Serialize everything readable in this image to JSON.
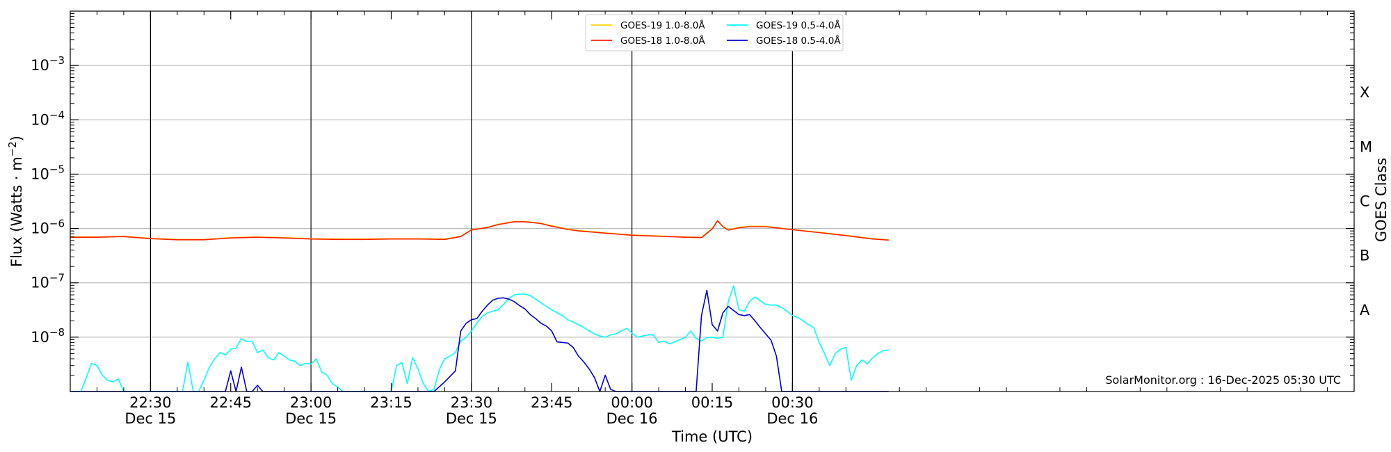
{
  "chart_data": {
    "type": "line",
    "title": "",
    "xlabel": "Time (UTC)",
    "ylabel": "Flux (Watts · m",
    "ylabel_sup": "−2",
    "ylabel_end": ")",
    "y2label": "GOES Class",
    "yscale": "log",
    "ylim": [
      1e-09,
      0.01
    ],
    "xlim_minutes": [
      1335,
      1575
    ],
    "grid": {
      "horizontal": true,
      "vertical_at_major_ticks": true
    },
    "legend_position": "top-center",
    "y_ticks": [
      {
        "value": 1e-08,
        "base": "10",
        "exp": "−8"
      },
      {
        "value": 1e-07,
        "base": "10",
        "exp": "−7"
      },
      {
        "value": 1e-06,
        "base": "10",
        "exp": "−6"
      },
      {
        "value": 1e-05,
        "base": "10",
        "exp": "−5"
      },
      {
        "value": 0.0001,
        "base": "10",
        "exp": "−4"
      },
      {
        "value": 0.001,
        "base": "10",
        "exp": "−3"
      }
    ],
    "x_ticks": [
      {
        "minute": 1350,
        "label": "22:30",
        "date": "Dec 15",
        "major": true
      },
      {
        "minute": 1365,
        "label": "22:45",
        "date": "",
        "major": false
      },
      {
        "minute": 1380,
        "label": "23:00",
        "date": "Dec 15",
        "major": true
      },
      {
        "minute": 1395,
        "label": "23:15",
        "date": "",
        "major": false
      },
      {
        "minute": 1410,
        "label": "23:30",
        "date": "Dec 15",
        "major": true
      },
      {
        "minute": 1425,
        "label": "23:45",
        "date": "",
        "major": false
      },
      {
        "minute": 1440,
        "label": "00:00",
        "date": "Dec 16",
        "major": true
      },
      {
        "minute": 1455,
        "label": "00:15",
        "date": "",
        "major": false
      },
      {
        "minute": 1470,
        "label": "00:30",
        "date": "Dec 16",
        "major": true
      }
    ],
    "goes_classes": [
      {
        "label": "A",
        "value": 3.16e-08
      },
      {
        "label": "B",
        "value": 3.16e-07
      },
      {
        "label": "C",
        "value": 3.16e-06
      },
      {
        "label": "M",
        "value": 3.16e-05
      },
      {
        "label": "X",
        "value": 0.000316
      }
    ],
    "series": [
      {
        "name": "GOES-19 1.0-8.0Å",
        "color": "#ffd700",
        "x": [
          1335,
          1340,
          1345,
          1350,
          1355,
          1360,
          1365,
          1370,
          1375,
          1380,
          1385,
          1390,
          1395,
          1400,
          1405,
          1408,
          1410,
          1413,
          1415,
          1418,
          1420,
          1423,
          1425,
          1428,
          1430,
          1435,
          1440,
          1445,
          1450,
          1453,
          1455,
          1456,
          1457,
          1458,
          1460,
          1462,
          1465,
          1470,
          1475,
          1480,
          1485,
          1488
        ],
        "y": [
          7e-07,
          7e-07,
          7.2e-07,
          6.6e-07,
          6.3e-07,
          6.3e-07,
          6.8e-07,
          7e-07,
          6.8e-07,
          6.5e-07,
          6.4e-07,
          6.4e-07,
          6.5e-07,
          6.5e-07,
          6.4e-07,
          7.2e-07,
          9.5e-07,
          1.05e-06,
          1.2e-06,
          1.35e-06,
          1.35e-06,
          1.25e-06,
          1.12e-06,
          9.8e-07,
          9.2e-07,
          8.3e-07,
          7.6e-07,
          7.3e-07,
          7e-07,
          6.9e-07,
          1e-06,
          1.4e-06,
          1.1e-06,
          9.5e-07,
          1.05e-06,
          1.1e-06,
          1.1e-06,
          9.6e-07,
          8.5e-07,
          7.5e-07,
          6.5e-07,
          6.2e-07
        ]
      },
      {
        "name": "GOES-18 1.0-8.0Å",
        "color": "#ff2000",
        "x": [
          1335,
          1340,
          1345,
          1350,
          1355,
          1360,
          1365,
          1370,
          1375,
          1380,
          1385,
          1390,
          1395,
          1400,
          1405,
          1408,
          1410,
          1413,
          1415,
          1418,
          1420,
          1423,
          1425,
          1428,
          1430,
          1435,
          1440,
          1445,
          1450,
          1453,
          1455,
          1456,
          1457,
          1458,
          1460,
          1462,
          1465,
          1470,
          1475,
          1480,
          1485,
          1488
        ],
        "y": [
          6.9e-07,
          6.9e-07,
          7.1e-07,
          6.5e-07,
          6.2e-07,
          6.2e-07,
          6.7e-07,
          6.9e-07,
          6.7e-07,
          6.4e-07,
          6.3e-07,
          6.3e-07,
          6.4e-07,
          6.4e-07,
          6.3e-07,
          7.1e-07,
          9.4e-07,
          1.04e-06,
          1.18e-06,
          1.33e-06,
          1.33e-06,
          1.23e-06,
          1.1e-06,
          9.6e-07,
          9e-07,
          8.2e-07,
          7.5e-07,
          7.2e-07,
          6.9e-07,
          6.8e-07,
          9.8e-07,
          1.38e-06,
          1.08e-06,
          9.3e-07,
          1.03e-06,
          1.08e-06,
          1.08e-06,
          9.5e-07,
          8.4e-07,
          7.4e-07,
          6.4e-07,
          6.1e-07
        ]
      },
      {
        "name": "GOES-19 0.5-4.0Å",
        "color": "#00ffff",
        "x": [
          1335,
          1337,
          1339,
          1340,
          1341,
          1342,
          1343,
          1344,
          1345,
          1347,
          1348,
          1350,
          1351,
          1352,
          1353,
          1354,
          1355,
          1356,
          1357,
          1358,
          1359,
          1360,
          1361,
          1362,
          1363,
          1364,
          1365,
          1366,
          1367,
          1368,
          1369,
          1370,
          1371,
          1372,
          1373,
          1374,
          1375,
          1376,
          1377,
          1378,
          1379,
          1380,
          1381,
          1382,
          1383,
          1384,
          1385,
          1386,
          1387,
          1388,
          1389,
          1390,
          1391,
          1392,
          1393,
          1394,
          1395,
          1396,
          1397,
          1398,
          1399,
          1400,
          1401,
          1402,
          1403,
          1404,
          1405,
          1406,
          1407,
          1408,
          1409,
          1410,
          1411,
          1412,
          1413,
          1414,
          1415,
          1416,
          1417,
          1418,
          1419,
          1420,
          1421,
          1422,
          1423,
          1424,
          1425,
          1426,
          1427,
          1428,
          1429,
          1430,
          1431,
          1432,
          1433,
          1434,
          1435,
          1436,
          1437,
          1438,
          1439,
          1440,
          1441,
          1442,
          1443,
          1444,
          1445,
          1446,
          1447,
          1448,
          1449,
          1450,
          1451,
          1452,
          1453,
          1454,
          1455,
          1456,
          1457,
          1458,
          1459,
          1460,
          1461,
          1462,
          1463,
          1464,
          1465,
          1466,
          1467,
          1468,
          1469,
          1470,
          1471,
          1472,
          1473,
          1474,
          1475,
          1476,
          1477,
          1478,
          1479,
          1480,
          1481,
          1482,
          1483,
          1484,
          1485,
          1486,
          1487,
          1488
        ],
        "y": [
          1e-09,
          1e-09,
          3.3e-09,
          3e-09,
          2e-09,
          1.6e-09,
          1.5e-09,
          1.7e-09,
          1e-09,
          1e-09,
          1e-09,
          1e-09,
          1e-09,
          1e-09,
          1e-09,
          1e-09,
          1e-09,
          1e-09,
          3.5e-09,
          1e-09,
          1e-09,
          1.6e-09,
          2.8e-09,
          4e-09,
          5.2e-09,
          4.7e-09,
          6e-09,
          6.3e-09,
          9.4e-09,
          8.3e-09,
          8.5e-09,
          5.2e-09,
          5.8e-09,
          4.2e-09,
          3.8e-09,
          5.2e-09,
          4.5e-09,
          3.8e-09,
          3.6e-09,
          3e-09,
          3.3e-09,
          3.2e-09,
          4e-09,
          2.3e-09,
          2e-09,
          1.4e-09,
          1.2e-09,
          1e-09,
          1e-09,
          1e-09,
          1e-09,
          1e-09,
          1e-09,
          1e-09,
          1e-09,
          1e-09,
          1e-09,
          3e-09,
          3.4e-09,
          1.4e-09,
          4.2e-09,
          2.6e-09,
          1.4e-09,
          1e-09,
          1.1e-09,
          2.5e-09,
          4e-09,
          4.5e-09,
          5.2e-09,
          8.5e-09,
          1e-08,
          1.3e-08,
          1.8e-08,
          2.4e-08,
          2.8e-08,
          3e-08,
          3.2e-08,
          4e-08,
          5.2e-08,
          6e-08,
          6.2e-08,
          6.2e-08,
          5.8e-08,
          5e-08,
          4.3e-08,
          3.7e-08,
          3.2e-08,
          2.8e-08,
          2.5e-08,
          2.1e-08,
          1.9e-08,
          1.7e-08,
          1.5e-08,
          1.3e-08,
          1.15e-08,
          1.05e-08,
          1e-08,
          1.1e-08,
          1.15e-08,
          1.3e-08,
          1.45e-08,
          1.2e-08,
          1e-08,
          1.05e-08,
          1.1e-08,
          1.1e-08,
          8e-09,
          8.5e-09,
          7.5e-09,
          8.2e-09,
          9e-09,
          1e-08,
          1.3e-08,
          9.5e-09,
          8.5e-09,
          9.8e-09,
          1e-08,
          9.5e-09,
          1e-08,
          4.5e-08,
          8.8e-08,
          3.2e-08,
          3e-08,
          4.5e-08,
          5.5e-08,
          4.7e-08,
          4e-08,
          3.9e-08,
          3.9e-08,
          3.5e-08,
          3e-08,
          2.5e-08,
          2.3e-08,
          2e-08,
          1.7e-08,
          1.5e-08,
          8e-09,
          5e-09,
          3e-09,
          5e-09,
          6e-09,
          6.5e-09,
          1.6e-09,
          3e-09,
          3.8e-09,
          3.2e-09,
          4.2e-09,
          5e-09,
          5.7e-09,
          5.8e-09
        ]
      },
      {
        "name": "GOES-18 0.5-4.0Å",
        "color": "#0000cc",
        "x": [
          1335,
          1364,
          1365,
          1366,
          1367,
          1368,
          1369,
          1370,
          1371,
          1372,
          1373,
          1374,
          1375,
          1402,
          1403,
          1405,
          1407,
          1408,
          1409,
          1410,
          1411,
          1412,
          1413,
          1414,
          1415,
          1416,
          1417,
          1418,
          1419,
          1420,
          1421,
          1422,
          1423,
          1424,
          1425,
          1426,
          1427,
          1428,
          1429,
          1430,
          1431,
          1432,
          1433,
          1434,
          1435,
          1436,
          1437,
          1438,
          1439,
          1440,
          1452,
          1453,
          1454,
          1455,
          1456,
          1457,
          1458,
          1459,
          1460,
          1461,
          1462,
          1463,
          1464,
          1465,
          1466,
          1467,
          1468,
          1469,
          1470,
          1471,
          1472,
          1488
        ],
        "y": [
          1e-09,
          1e-09,
          2.4e-09,
          1e-09,
          2.8e-09,
          1e-09,
          1e-09,
          1.3e-09,
          1e-09,
          1e-09,
          1e-09,
          1e-09,
          1e-09,
          1e-09,
          1e-09,
          1.5e-09,
          2.4e-09,
          1.3e-08,
          1.8e-08,
          2.1e-08,
          2.2e-08,
          3e-08,
          3.9e-08,
          4.8e-08,
          5.2e-08,
          5.3e-08,
          5e-08,
          4.5e-08,
          3.8e-08,
          3.3e-08,
          2.6e-08,
          2.2e-08,
          1.8e-08,
          1.6e-08,
          1.3e-08,
          8.2e-09,
          8e-09,
          7.8e-09,
          6.5e-09,
          4.5e-09,
          3.5e-09,
          2.6e-09,
          1.8e-09,
          1e-09,
          2e-09,
          1.1e-09,
          1e-09,
          1e-09,
          1e-09,
          1e-09,
          1e-09,
          2.5e-08,
          7.3e-08,
          1.7e-08,
          1.3e-08,
          2.8e-08,
          3.7e-08,
          3.1e-08,
          2.6e-08,
          2.5e-08,
          2.6e-08,
          2e-08,
          1.5e-08,
          1.15e-08,
          8.8e-09,
          4.5e-09,
          1e-09,
          1e-09,
          1e-09,
          1e-09,
          1e-09,
          1e-09
        ]
      }
    ],
    "annotation": "SolarMonitor.org : 16-Dec-2025 05:30 UTC"
  }
}
